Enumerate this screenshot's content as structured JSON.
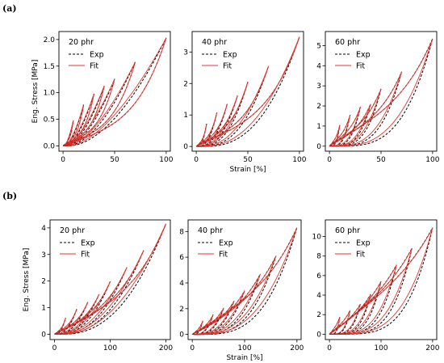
{
  "panels": [
    {
      "label": "(a)"
    },
    {
      "label": "(b)"
    }
  ],
  "colors": {
    "exp": "#000000",
    "fit": "#e8342c",
    "axis": "#000000"
  },
  "chart_data": [
    {
      "type": "line",
      "panel": "(a)",
      "title": "20 phr",
      "xlabel": "",
      "ylabel": "Eng. Stress [MPa]",
      "xlim": [
        -4,
        104
      ],
      "ylim": [
        -0.1,
        2.15
      ],
      "xticks": [
        0,
        50,
        100
      ],
      "yticks": [
        0.0,
        0.5,
        1.0,
        1.5,
        2.0
      ],
      "ytick_labels": [
        "0.0",
        "0.5",
        "1.0",
        "1.5",
        "2.0"
      ],
      "legend": {
        "placement": "top-left",
        "entries": [
          "Exp",
          "Fit"
        ]
      },
      "max_strains": [
        10,
        20,
        30,
        40,
        50,
        70,
        100
      ],
      "peak_stresses": [
        0.48,
        0.78,
        0.98,
        1.13,
        1.26,
        1.58,
        2.03
      ],
      "shape": 1.9,
      "hysteresis": 0.8
    },
    {
      "type": "line",
      "panel": "(a)",
      "title": "40 phr",
      "xlabel": "Strain [%]",
      "ylabel": "",
      "xlim": [
        -4,
        104
      ],
      "ylim": [
        -0.15,
        3.65
      ],
      "xticks": [
        0,
        50,
        100
      ],
      "yticks": [
        0,
        1,
        2,
        3
      ],
      "ytick_labels": [
        "0",
        "1",
        "2",
        "3"
      ],
      "legend": {
        "placement": "top-left",
        "entries": [
          "Exp",
          "Fit"
        ]
      },
      "max_strains": [
        10,
        20,
        30,
        40,
        50,
        70,
        100
      ],
      "peak_stresses": [
        0.72,
        1.08,
        1.35,
        1.62,
        2.05,
        2.55,
        3.48
      ],
      "shape": 1.3,
      "hysteresis": 1.6
    },
    {
      "type": "line",
      "panel": "(a)",
      "title": "60 phr",
      "xlabel": "",
      "ylabel": "",
      "xlim": [
        -4,
        104
      ],
      "ylim": [
        -0.25,
        5.7
      ],
      "xticks": [
        0,
        50,
        100
      ],
      "yticks": [
        0,
        1,
        2,
        3,
        4,
        5
      ],
      "ytick_labels": [
        "0",
        "1",
        "2",
        "3",
        "4",
        "5"
      ],
      "legend": {
        "placement": "top-left",
        "entries": [
          "Exp",
          "Fit"
        ]
      },
      "max_strains": [
        10,
        20,
        30,
        40,
        50,
        70,
        100
      ],
      "peak_stresses": [
        1.05,
        1.55,
        1.95,
        2.1,
        2.85,
        3.7,
        5.35
      ],
      "shape": 0.7,
      "hysteresis": 2.4
    },
    {
      "type": "line",
      "panel": "(b)",
      "title": "20 phr",
      "xlabel": "",
      "ylabel": "Eng. Stress [MPa]",
      "xlim": [
        -8,
        208
      ],
      "ylim": [
        -0.2,
        4.3
      ],
      "xticks": [
        0,
        100,
        200
      ],
      "yticks": [
        0,
        1,
        2,
        3,
        4
      ],
      "ytick_labels": [
        "0",
        "1",
        "2",
        "3",
        "4"
      ],
      "legend": {
        "placement": "top-left",
        "entries": [
          "Exp",
          "Fit"
        ]
      },
      "max_strains": [
        20,
        40,
        60,
        80,
        100,
        130,
        160,
        200
      ],
      "peak_stresses": [
        0.62,
        0.95,
        1.22,
        1.5,
        1.98,
        2.52,
        3.15,
        4.15
      ],
      "shape": 0.9,
      "hysteresis": 1.4
    },
    {
      "type": "line",
      "panel": "(b)",
      "title": "40 phr",
      "xlabel": "Strain [%]",
      "ylabel": "",
      "xlim": [
        -8,
        208
      ],
      "ylim": [
        -0.4,
        8.9
      ],
      "xticks": [
        0,
        100,
        200
      ],
      "yticks": [
        0,
        2,
        4,
        6,
        8
      ],
      "ytick_labels": [
        "0",
        "2",
        "4",
        "6",
        "8"
      ],
      "legend": {
        "placement": "top-left",
        "entries": [
          "Exp",
          "Fit"
        ]
      },
      "max_strains": [
        20,
        40,
        60,
        80,
        100,
        130,
        160,
        200
      ],
      "peak_stresses": [
        1.05,
        1.55,
        2.05,
        2.6,
        3.4,
        4.7,
        6.1,
        8.3
      ],
      "shape": 0.6,
      "hysteresis": 2.2
    },
    {
      "type": "line",
      "panel": "(b)",
      "title": "60 phr",
      "xlabel": "",
      "ylabel": "",
      "xlim": [
        -8,
        208
      ],
      "ylim": [
        -0.55,
        11.7
      ],
      "xticks": [
        0,
        100,
        200
      ],
      "yticks": [
        0,
        2,
        4,
        6,
        8,
        10
      ],
      "ytick_labels": [
        "0",
        "2",
        "4",
        "6",
        "8",
        "10"
      ],
      "legend": {
        "placement": "top-left",
        "entries": [
          "Exp",
          "Fit"
        ]
      },
      "max_strains": [
        20,
        40,
        60,
        80,
        100,
        130,
        160,
        200
      ],
      "peak_stresses": [
        1.75,
        2.45,
        3.1,
        4.1,
        5.4,
        7.1,
        8.8,
        10.9
      ],
      "shape": 0.35,
      "hysteresis": 3.0
    }
  ]
}
